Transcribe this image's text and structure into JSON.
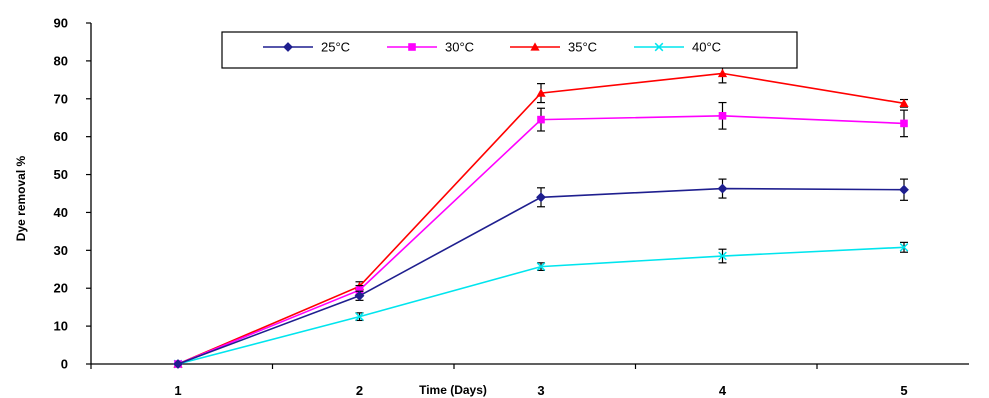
{
  "chart_data": {
    "type": "line",
    "title": "",
    "xlabel": "Time (Days)",
    "ylabel": "Dye removal %",
    "categories": [
      "1",
      "2",
      "3",
      "4",
      "5"
    ],
    "x": [
      1,
      2,
      3,
      4,
      5
    ],
    "ylim": [
      0,
      90
    ],
    "yticks": [
      0,
      10,
      20,
      30,
      40,
      50,
      60,
      70,
      80,
      90
    ],
    "grid": false,
    "legend_position": "top",
    "series": [
      {
        "name": "25°C",
        "color": "#1f1f8f",
        "marker": "diamond",
        "values": [
          0,
          18,
          44,
          46.3,
          46
        ],
        "errors": [
          0,
          1.2,
          2.5,
          2.5,
          2.8
        ]
      },
      {
        "name": "30°C",
        "color": "#ff00ff",
        "marker": "square",
        "values": [
          0,
          19.5,
          64.5,
          65.5,
          63.5
        ],
        "errors": [
          0,
          1.2,
          3,
          3.5,
          3.5
        ]
      },
      {
        "name": "35°C",
        "color": "#ff0000",
        "marker": "triangle",
        "values": [
          0,
          20.5,
          71.5,
          76.7,
          68.8
        ],
        "errors": [
          0,
          1.2,
          2.5,
          2.5,
          1
        ]
      },
      {
        "name": "40°C",
        "color": "#00e5ee",
        "marker": "x",
        "values": [
          0,
          12.5,
          25.7,
          28.5,
          30.8
        ],
        "errors": [
          0,
          1,
          1,
          1.8,
          1.3
        ]
      }
    ]
  }
}
